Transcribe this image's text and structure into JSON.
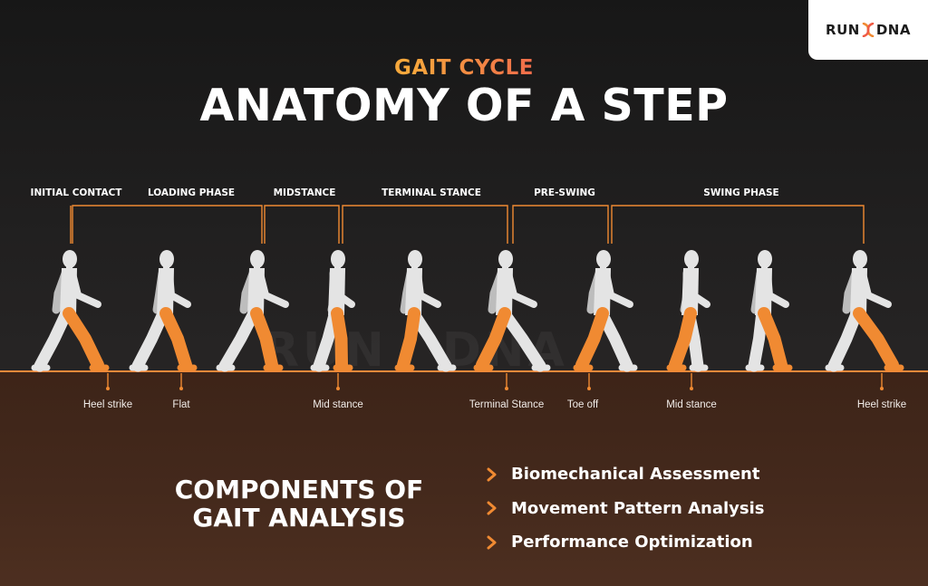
{
  "brand": {
    "name_left": "RUN",
    "name_right": "DNA",
    "icon": "dna-helix-icon",
    "watermark_left": "RUN",
    "watermark_right": "DNA"
  },
  "header": {
    "subtitle": "GAIT CYCLE",
    "title": "ANATOMY OF A STEP"
  },
  "phases": [
    "INITIAL CONTACT",
    "LOADING PHASE",
    "MIDSTANCE",
    "TERMINAL STANCE",
    "PRE-SWING",
    "SWING PHASE"
  ],
  "events": [
    "Heel strike",
    "Flat",
    "Mid stance",
    "Terminal Stance",
    "Toe off",
    "Mid stance",
    "Heel strike"
  ],
  "figures": {
    "count": 10,
    "body_color": "#e4e4e4",
    "body_shade": "#bdbdbd",
    "highlight_leg_color": "#f08a32"
  },
  "components": {
    "title_line1": "COMPONENTS OF",
    "title_line2": "GAIT ANALYSIS",
    "items": [
      "Biomechanical Assessment",
      "Movement Pattern Analysis",
      "Performance Optimization"
    ]
  },
  "colors": {
    "accent_orange": "#f08a32",
    "subtitle_gradient_start": "#f6a83c",
    "subtitle_gradient_end": "#ef6a4b",
    "background_top": "#1c1b1b",
    "ground_brown": "#44291c"
  }
}
